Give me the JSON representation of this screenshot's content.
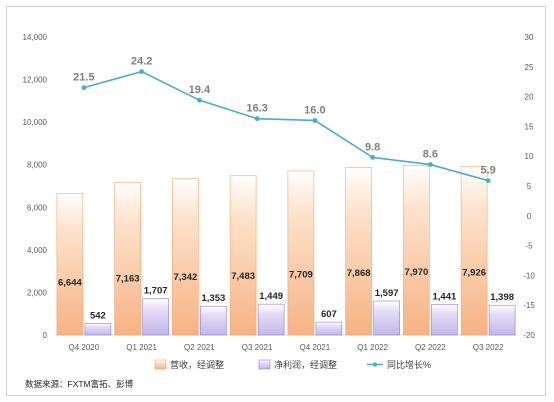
{
  "chart_data": {
    "type": "bar",
    "categories": [
      "Q4 2020",
      "Q1 2021",
      "Q2 2021",
      "Q3 2021",
      "Q4 2021",
      "Q1 2022",
      "Q2 2022",
      "Q3 2022"
    ],
    "series": [
      {
        "name": "营收，经调整",
        "type": "bar",
        "axis": "left",
        "values": [
          6644,
          7163,
          7342,
          7483,
          7709,
          7868,
          7970,
          7926
        ],
        "labels": [
          "6,644",
          "7,163",
          "7,342",
          "7,483",
          "7,709",
          "7,868",
          "7,970",
          "7,926"
        ]
      },
      {
        "name": "净利润，经调整",
        "type": "bar",
        "axis": "left",
        "values": [
          542,
          1707,
          1353,
          1449,
          607,
          1597,
          1441,
          1398
        ],
        "labels": [
          "542",
          "1,707",
          "1,353",
          "1,449",
          "607",
          "1,597",
          "1,441",
          "1,398"
        ]
      },
      {
        "name": "同比增长%",
        "type": "line",
        "axis": "right",
        "values": [
          21.5,
          24.2,
          19.4,
          16.3,
          16.0,
          9.8,
          8.6,
          5.9
        ],
        "labels": [
          "21.5",
          "24.2",
          "19.4",
          "16.3",
          "16.0",
          "9.8",
          "8.6",
          "5.9"
        ]
      }
    ],
    "ylim_left": [
      0,
      14000
    ],
    "yticks_left": [
      "0",
      "2,000",
      "4,000",
      "6,000",
      "8,000",
      "10,000",
      "12,000",
      "14,000"
    ],
    "ylim_right": [
      -20,
      30
    ],
    "yticks_right": [
      "-20",
      "-15",
      "-10",
      "-5",
      "0",
      "5",
      "10",
      "15",
      "20",
      "25",
      "30"
    ],
    "legend_position": "bottom",
    "grid": false,
    "colors": {
      "revenue": "#f9c49a",
      "profit": "#cfc3ec",
      "line": "#4bacc6"
    }
  },
  "source": "数据来源：FXTM富拓、彭博"
}
